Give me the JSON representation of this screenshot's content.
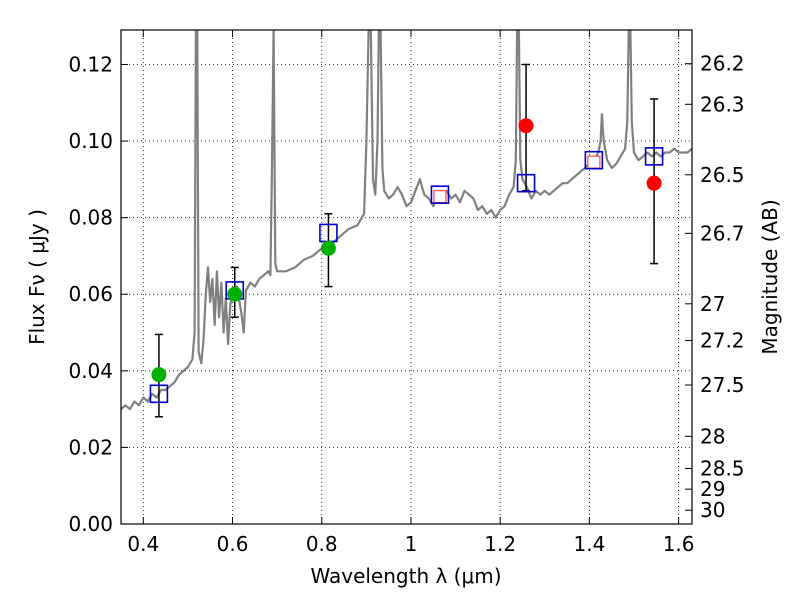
{
  "chart_data": {
    "type": "scatter",
    "xlabel": "Wavelength  λ (μm)",
    "ylabel": "Flux  Fν  ( μJy )",
    "y2label": "Magnitude (AB)",
    "xlim": [
      0.35,
      1.63
    ],
    "ylim": [
      0.0,
      0.129
    ],
    "xticks": [
      0.4,
      0.6,
      0.8,
      1.0,
      1.2,
      1.4,
      1.6
    ],
    "xtick_labels": [
      "0.4",
      "0.6",
      "0.8",
      "1",
      "1.2",
      "1.4",
      "1.6"
    ],
    "yticks": [
      0.0,
      0.02,
      0.04,
      0.06,
      0.08,
      0.1,
      0.12
    ],
    "ytick_labels": [
      "0.00",
      "0.02",
      "0.04",
      "0.06",
      "0.08",
      "0.10",
      "0.12"
    ],
    "y2ticks": [
      {
        "mag": "26.2",
        "flux": 0.1202
      },
      {
        "mag": "26.3",
        "flux": 0.1096
      },
      {
        "mag": "26.5",
        "flux": 0.0912
      },
      {
        "mag": "26.7",
        "flux": 0.0759
      },
      {
        "mag": "27",
        "flux": 0.0575
      },
      {
        "mag": "27.2",
        "flux": 0.0479
      },
      {
        "mag": "27.5",
        "flux": 0.0363
      },
      {
        "mag": "28",
        "flux": 0.0229
      },
      {
        "mag": "28.5",
        "flux": 0.0145
      },
      {
        "mag": "29",
        "flux": 0.0091
      },
      {
        "mag": "30",
        "flux": 0.0036
      }
    ],
    "grid": true,
    "model_spectrum": {
      "color": "#808080",
      "points": [
        [
          0.35,
          0.03
        ],
        [
          0.36,
          0.031
        ],
        [
          0.37,
          0.03
        ],
        [
          0.38,
          0.032
        ],
        [
          0.39,
          0.031
        ],
        [
          0.4,
          0.033
        ],
        [
          0.41,
          0.032
        ],
        [
          0.42,
          0.034
        ],
        [
          0.43,
          0.033
        ],
        [
          0.44,
          0.035
        ],
        [
          0.45,
          0.035
        ],
        [
          0.46,
          0.036
        ],
        [
          0.47,
          0.037
        ],
        [
          0.48,
          0.039
        ],
        [
          0.49,
          0.04
        ],
        [
          0.5,
          0.041
        ],
        [
          0.51,
          0.043
        ],
        [
          0.515,
          0.05
        ],
        [
          0.518,
          0.129
        ],
        [
          0.521,
          0.129
        ],
        [
          0.524,
          0.045
        ],
        [
          0.53,
          0.042
        ],
        [
          0.535,
          0.048
        ],
        [
          0.54,
          0.06
        ],
        [
          0.545,
          0.067
        ],
        [
          0.55,
          0.058
        ],
        [
          0.555,
          0.064
        ],
        [
          0.56,
          0.052
        ],
        [
          0.565,
          0.066
        ],
        [
          0.57,
          0.054
        ],
        [
          0.575,
          0.063
        ],
        [
          0.58,
          0.05
        ],
        [
          0.585,
          0.059
        ],
        [
          0.59,
          0.047
        ],
        [
          0.595,
          0.057
        ],
        [
          0.6,
          0.061
        ],
        [
          0.61,
          0.062
        ],
        [
          0.62,
          0.055
        ],
        [
          0.625,
          0.05
        ],
        [
          0.63,
          0.061
        ],
        [
          0.64,
          0.063
        ],
        [
          0.65,
          0.062
        ],
        [
          0.66,
          0.064
        ],
        [
          0.67,
          0.065
        ],
        [
          0.68,
          0.066
        ],
        [
          0.685,
          0.065
        ],
        [
          0.688,
          0.09
        ],
        [
          0.692,
          0.129
        ],
        [
          0.696,
          0.068
        ],
        [
          0.7,
          0.066
        ],
        [
          0.72,
          0.066
        ],
        [
          0.74,
          0.067
        ],
        [
          0.76,
          0.069
        ],
        [
          0.78,
          0.07
        ],
        [
          0.8,
          0.072
        ],
        [
          0.82,
          0.073
        ],
        [
          0.84,
          0.075
        ],
        [
          0.86,
          0.077
        ],
        [
          0.88,
          0.078
        ],
        [
          0.895,
          0.081
        ],
        [
          0.9,
          0.1
        ],
        [
          0.905,
          0.129
        ],
        [
          0.91,
          0.129
        ],
        [
          0.915,
          0.09
        ],
        [
          0.92,
          0.086
        ],
        [
          0.925,
          0.1
        ],
        [
          0.928,
          0.129
        ],
        [
          0.932,
          0.129
        ],
        [
          0.936,
          0.093
        ],
        [
          0.94,
          0.087
        ],
        [
          0.95,
          0.085
        ],
        [
          0.96,
          0.086
        ],
        [
          0.97,
          0.088
        ],
        [
          0.98,
          0.086
        ],
        [
          0.99,
          0.083
        ],
        [
          1.0,
          0.084
        ],
        [
          1.01,
          0.087
        ],
        [
          1.02,
          0.09
        ],
        [
          1.03,
          0.086
        ],
        [
          1.04,
          0.085
        ],
        [
          1.05,
          0.083
        ],
        [
          1.06,
          0.085
        ],
        [
          1.07,
          0.086
        ],
        [
          1.08,
          0.087
        ],
        [
          1.09,
          0.085
        ],
        [
          1.1,
          0.086
        ],
        [
          1.11,
          0.084
        ],
        [
          1.12,
          0.087
        ],
        [
          1.13,
          0.086
        ],
        [
          1.14,
          0.085
        ],
        [
          1.15,
          0.082
        ],
        [
          1.16,
          0.083
        ],
        [
          1.17,
          0.081
        ],
        [
          1.18,
          0.082
        ],
        [
          1.19,
          0.08
        ],
        [
          1.2,
          0.082
        ],
        [
          1.21,
          0.083
        ],
        [
          1.22,
          0.086
        ],
        [
          1.23,
          0.088
        ],
        [
          1.235,
          0.095
        ],
        [
          1.238,
          0.129
        ],
        [
          1.242,
          0.129
        ],
        [
          1.245,
          0.095
        ],
        [
          1.25,
          0.09
        ],
        [
          1.26,
          0.088
        ],
        [
          1.27,
          0.085
        ],
        [
          1.28,
          0.087
        ],
        [
          1.29,
          0.086
        ],
        [
          1.3,
          0.087
        ],
        [
          1.31,
          0.086
        ],
        [
          1.32,
          0.087
        ],
        [
          1.33,
          0.088
        ],
        [
          1.34,
          0.089
        ],
        [
          1.35,
          0.089
        ],
        [
          1.36,
          0.09
        ],
        [
          1.37,
          0.091
        ],
        [
          1.38,
          0.092
        ],
        [
          1.39,
          0.093
        ],
        [
          1.4,
          0.094
        ],
        [
          1.41,
          0.095
        ],
        [
          1.42,
          0.097
        ],
        [
          1.425,
          0.1
        ],
        [
          1.428,
          0.107
        ],
        [
          1.432,
          0.1
        ],
        [
          1.44,
          0.095
        ],
        [
          1.45,
          0.093
        ],
        [
          1.46,
          0.094
        ],
        [
          1.47,
          0.096
        ],
        [
          1.48,
          0.098
        ],
        [
          1.485,
          0.105
        ],
        [
          1.488,
          0.129
        ],
        [
          1.492,
          0.129
        ],
        [
          1.495,
          0.105
        ],
        [
          1.5,
          0.097
        ],
        [
          1.51,
          0.095
        ],
        [
          1.52,
          0.096
        ],
        [
          1.53,
          0.097
        ],
        [
          1.54,
          0.096
        ],
        [
          1.55,
          0.097
        ],
        [
          1.56,
          0.096
        ],
        [
          1.57,
          0.097
        ],
        [
          1.58,
          0.097
        ],
        [
          1.59,
          0.098
        ],
        [
          1.6,
          0.097
        ],
        [
          1.61,
          0.097
        ],
        [
          1.62,
          0.097
        ],
        [
          1.63,
          0.098
        ]
      ]
    },
    "error_bars": [
      {
        "x": 0.435,
        "low": 0.028,
        "high": 0.0495
      },
      {
        "x": 0.605,
        "low": 0.054,
        "high": 0.067
      },
      {
        "x": 0.815,
        "low": 0.062,
        "high": 0.081
      },
      {
        "x": 1.258,
        "low": 0.087,
        "high": 0.12
      },
      {
        "x": 1.545,
        "low": 0.068,
        "high": 0.111
      }
    ],
    "model_boxes": {
      "color": "#0000cc",
      "points": [
        [
          0.435,
          0.034
        ],
        [
          0.605,
          0.061
        ],
        [
          0.815,
          0.076
        ],
        [
          1.065,
          0.086
        ],
        [
          1.258,
          0.089
        ],
        [
          1.41,
          0.095
        ],
        [
          1.545,
          0.096
        ]
      ]
    },
    "observed_green": {
      "color": "#00b000",
      "points": [
        [
          0.435,
          0.039
        ],
        [
          0.605,
          0.06
        ],
        [
          0.815,
          0.072
        ]
      ]
    },
    "observed_red": {
      "color": "#ff0000",
      "points": [
        [
          1.258,
          0.104
        ],
        [
          1.545,
          0.089
        ]
      ]
    },
    "observed_red_boxes": {
      "color": "#ff4444",
      "points": [
        [
          1.065,
          0.0855
        ],
        [
          1.41,
          0.0945
        ]
      ]
    }
  }
}
